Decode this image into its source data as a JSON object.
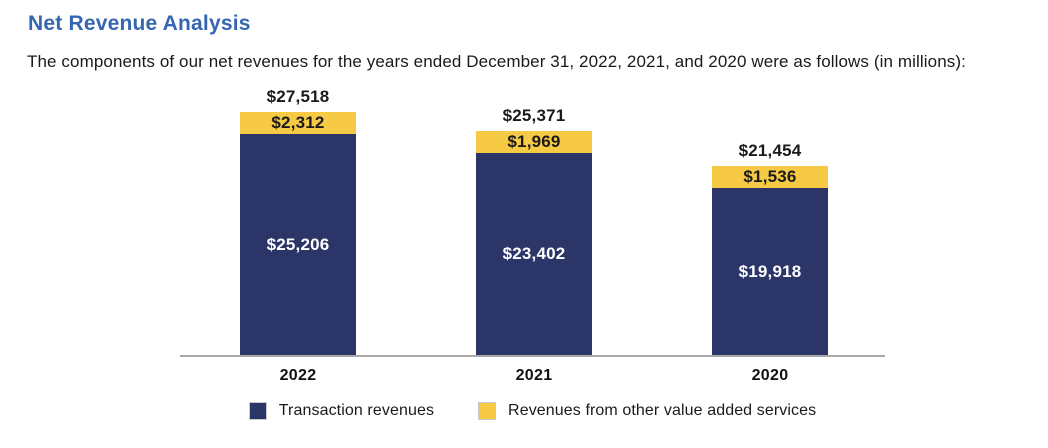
{
  "page": {
    "title": "Net Revenue Analysis",
    "subtitle": "The components of our net revenues for the years ended December 31, 2022, 2021, and 2020 were as follows (in millions):"
  },
  "colors": {
    "title_blue": "#3566B1",
    "navy": "#2B3568",
    "yellow": "#F7CA45",
    "text_dark": "#1A1A1A",
    "axis_gray": "#A8A8A8"
  },
  "chart_data": {
    "type": "bar",
    "stacked": true,
    "title": "Net Revenue Analysis",
    "unit_note": "in millions",
    "categories": [
      "2022",
      "2021",
      "2020"
    ],
    "series": [
      {
        "name": "Transaction revenues",
        "color": "#2B3568",
        "values": [
          25206,
          23402,
          19918
        ],
        "labels": [
          "$25,206",
          "$23,402",
          "$19,918"
        ]
      },
      {
        "name": "Revenues from other value added services",
        "color": "#F7CA45",
        "values": [
          2312,
          1969,
          1536
        ],
        "labels": [
          "$2,312",
          "$1,969",
          "$1,536"
        ]
      }
    ],
    "totals": [
      27518,
      25371,
      21454
    ],
    "total_labels": [
      "$27,518",
      "$25,371",
      "$21,454"
    ],
    "ylim": [
      0,
      28000
    ],
    "grid": false,
    "legend_position": "bottom"
  },
  "legend": {
    "items": [
      {
        "label": "Transaction revenues",
        "color": "#2B3568"
      },
      {
        "label": "Revenues from other value added services",
        "color": "#F7CA45"
      }
    ]
  }
}
